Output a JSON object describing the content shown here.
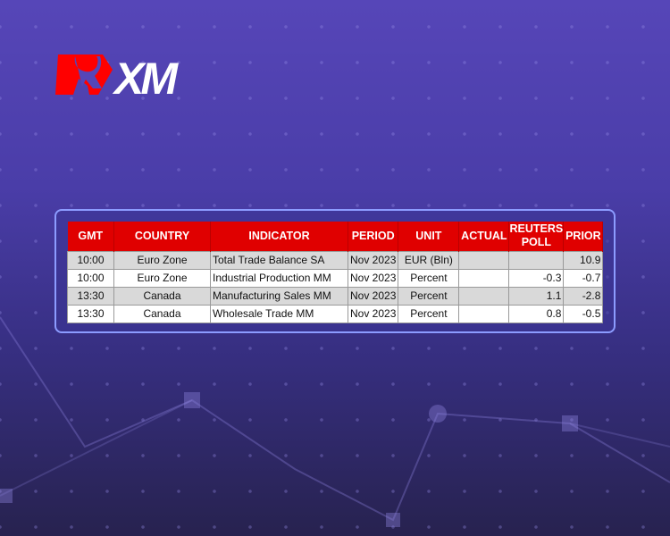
{
  "brand": {
    "logo_text": "XM",
    "accent": "#e00000"
  },
  "table": {
    "headers": [
      "GMT",
      "COUNTRY",
      "INDICATOR",
      "PERIOD",
      "UNIT",
      "ACTUAL",
      "REUTERS POLL",
      "PRIOR"
    ],
    "rows": [
      {
        "gmt": "10:00",
        "country": "Euro Zone",
        "indicator": "Total Trade Balance SA",
        "period": "Nov 2023",
        "unit": "EUR (Bln)",
        "actual": "",
        "poll": "",
        "prior": "10.9"
      },
      {
        "gmt": "10:00",
        "country": "Euro Zone",
        "indicator": "Industrial Production MM",
        "period": "Nov 2023",
        "unit": "Percent",
        "actual": "",
        "poll": "-0.3",
        "prior": "-0.7"
      },
      {
        "gmt": "13:30",
        "country": "Canada",
        "indicator": "Manufacturing Sales MM",
        "period": "Nov 2023",
        "unit": "Percent",
        "actual": "",
        "poll": "1.1",
        "prior": "-2.8"
      },
      {
        "gmt": "13:30",
        "country": "Canada",
        "indicator": "Wholesale Trade MM",
        "period": "Nov 2023",
        "unit": "Percent",
        "actual": "",
        "poll": "0.8",
        "prior": "-0.5"
      }
    ]
  }
}
